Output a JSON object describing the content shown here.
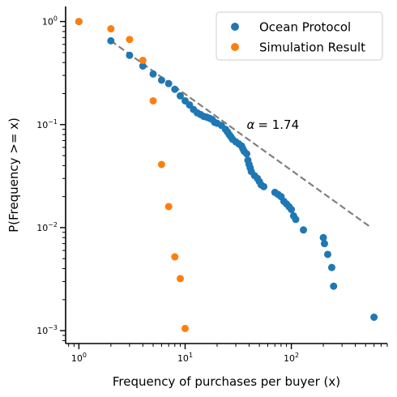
{
  "chart_data": {
    "type": "scatter",
    "xscale": "log",
    "yscale": "log",
    "xlabel": "Frequency of purchases per buyer (x)",
    "ylabel": "P(Frequency >= x)",
    "xlim": [
      0.75,
      800
    ],
    "ylim": [
      0.00075,
      1.4
    ],
    "grid": false,
    "legend_position": "top-right",
    "x_ticks": [
      {
        "value": 1,
        "base": "10",
        "exp": "0"
      },
      {
        "value": 10,
        "base": "10",
        "exp": "1"
      },
      {
        "value": 100,
        "base": "10",
        "exp": "2"
      }
    ],
    "y_ticks": [
      {
        "value": 1,
        "base": "10",
        "exp": "0"
      },
      {
        "value": 0.1,
        "base": "10",
        "exp": "−1"
      },
      {
        "value": 0.01,
        "base": "10",
        "exp": "−2"
      },
      {
        "value": 0.001,
        "base": "10",
        "exp": "−3"
      }
    ],
    "series": [
      {
        "name": "Ocean Protocol",
        "color": "#1f77b4",
        "points": [
          [
            1,
            1.0
          ],
          [
            2,
            0.65
          ],
          [
            3,
            0.47
          ],
          [
            4,
            0.37
          ],
          [
            5,
            0.31
          ],
          [
            6,
            0.27
          ],
          [
            7,
            0.25
          ],
          [
            8,
            0.22
          ],
          [
            9,
            0.19
          ],
          [
            10,
            0.17
          ],
          [
            11,
            0.155
          ],
          [
            12,
            0.14
          ],
          [
            13,
            0.13
          ],
          [
            14,
            0.125
          ],
          [
            15,
            0.12
          ],
          [
            16,
            0.118
          ],
          [
            17,
            0.115
          ],
          [
            18,
            0.112
          ],
          [
            19,
            0.105
          ],
          [
            20,
            0.103
          ],
          [
            22,
            0.098
          ],
          [
            24,
            0.09
          ],
          [
            25,
            0.085
          ],
          [
            26,
            0.08
          ],
          [
            27,
            0.076
          ],
          [
            28,
            0.072
          ],
          [
            30,
            0.068
          ],
          [
            32,
            0.065
          ],
          [
            34,
            0.062
          ],
          [
            35,
            0.058
          ],
          [
            36,
            0.055
          ],
          [
            38,
            0.052
          ],
          [
            39,
            0.045
          ],
          [
            40,
            0.041
          ],
          [
            41,
            0.038
          ],
          [
            42,
            0.035
          ],
          [
            45,
            0.032
          ],
          [
            48,
            0.03
          ],
          [
            50,
            0.028
          ],
          [
            52,
            0.026
          ],
          [
            55,
            0.025
          ],
          [
            70,
            0.022
          ],
          [
            75,
            0.021
          ],
          [
            80,
            0.02
          ],
          [
            85,
            0.018
          ],
          [
            90,
            0.017
          ],
          [
            95,
            0.016
          ],
          [
            100,
            0.015
          ],
          [
            105,
            0.013
          ],
          [
            110,
            0.012
          ],
          [
            130,
            0.0095
          ],
          [
            200,
            0.008
          ],
          [
            205,
            0.007
          ],
          [
            220,
            0.0055
          ],
          [
            240,
            0.0041
          ],
          [
            250,
            0.0027
          ],
          [
            600,
            0.00135
          ]
        ]
      },
      {
        "name": "Simulation Result",
        "color": "#ff7f0e",
        "points": [
          [
            1,
            1.0
          ],
          [
            2,
            0.85
          ],
          [
            3,
            0.67
          ],
          [
            4,
            0.42
          ],
          [
            5,
            0.17
          ],
          [
            6,
            0.041
          ],
          [
            7,
            0.016
          ],
          [
            8,
            0.0052
          ],
          [
            9,
            0.0032
          ],
          [
            10,
            0.00105
          ]
        ]
      }
    ],
    "fit_line": {
      "style": "dashed",
      "color": "#808080",
      "points": [
        [
          2,
          0.65
        ],
        [
          550,
          0.0102
        ]
      ]
    },
    "annotation": {
      "alpha_symbol": "α",
      "equals_value": "= 1.74",
      "x": 38,
      "y": 0.1
    }
  }
}
